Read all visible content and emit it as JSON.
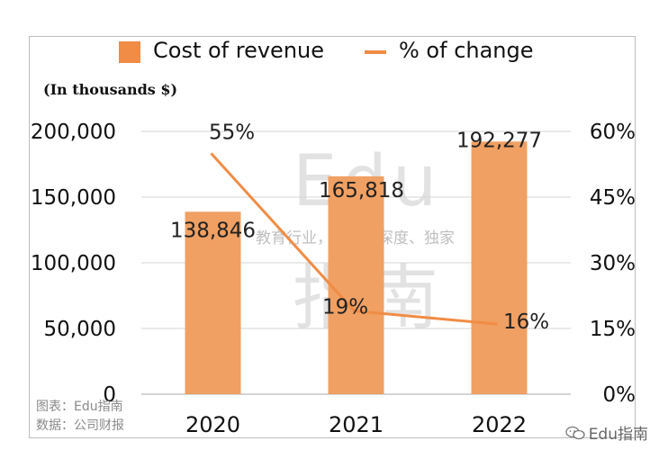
{
  "legend": {
    "bar_label": "Cost of revenue",
    "line_label": "% of change"
  },
  "units_label": "(In thousands $)",
  "colors": {
    "bar": "#f0a063",
    "line": "#f08c45",
    "legend_bar": "#f08c45",
    "grid": "#d4d4d4"
  },
  "chart_data": {
    "type": "bar",
    "categories": [
      "2020",
      "2021",
      "2022"
    ],
    "series": [
      {
        "name": "Cost of revenue",
        "type": "bar",
        "axis": "left",
        "values": [
          138846,
          165818,
          192277
        ],
        "labels": [
          "138,846",
          "165,818",
          "192,277"
        ]
      },
      {
        "name": "% of change",
        "type": "line",
        "axis": "right",
        "values": [
          55,
          19,
          16
        ],
        "labels": [
          "55%",
          "19%",
          "16%"
        ]
      }
    ],
    "y_left": {
      "min": 0,
      "max": 200000,
      "ticks": [
        "0",
        "50,000",
        "100,000",
        "150,000",
        "200,000"
      ]
    },
    "y_right": {
      "min": 0,
      "max": 60,
      "ticks": [
        "0%",
        "15%",
        "30%",
        "45%",
        "60%"
      ]
    },
    "ylabel": "(In thousands $)",
    "grid": true,
    "legend_position": "top"
  },
  "watermark": {
    "latin": "Edu",
    "chinese": "指南",
    "slogan": "教育行业，前沿、深度、独家"
  },
  "source": {
    "chart_by": "图表：Edu指南",
    "data_from": "数据：公司财报"
  },
  "brand": "Edu指南"
}
